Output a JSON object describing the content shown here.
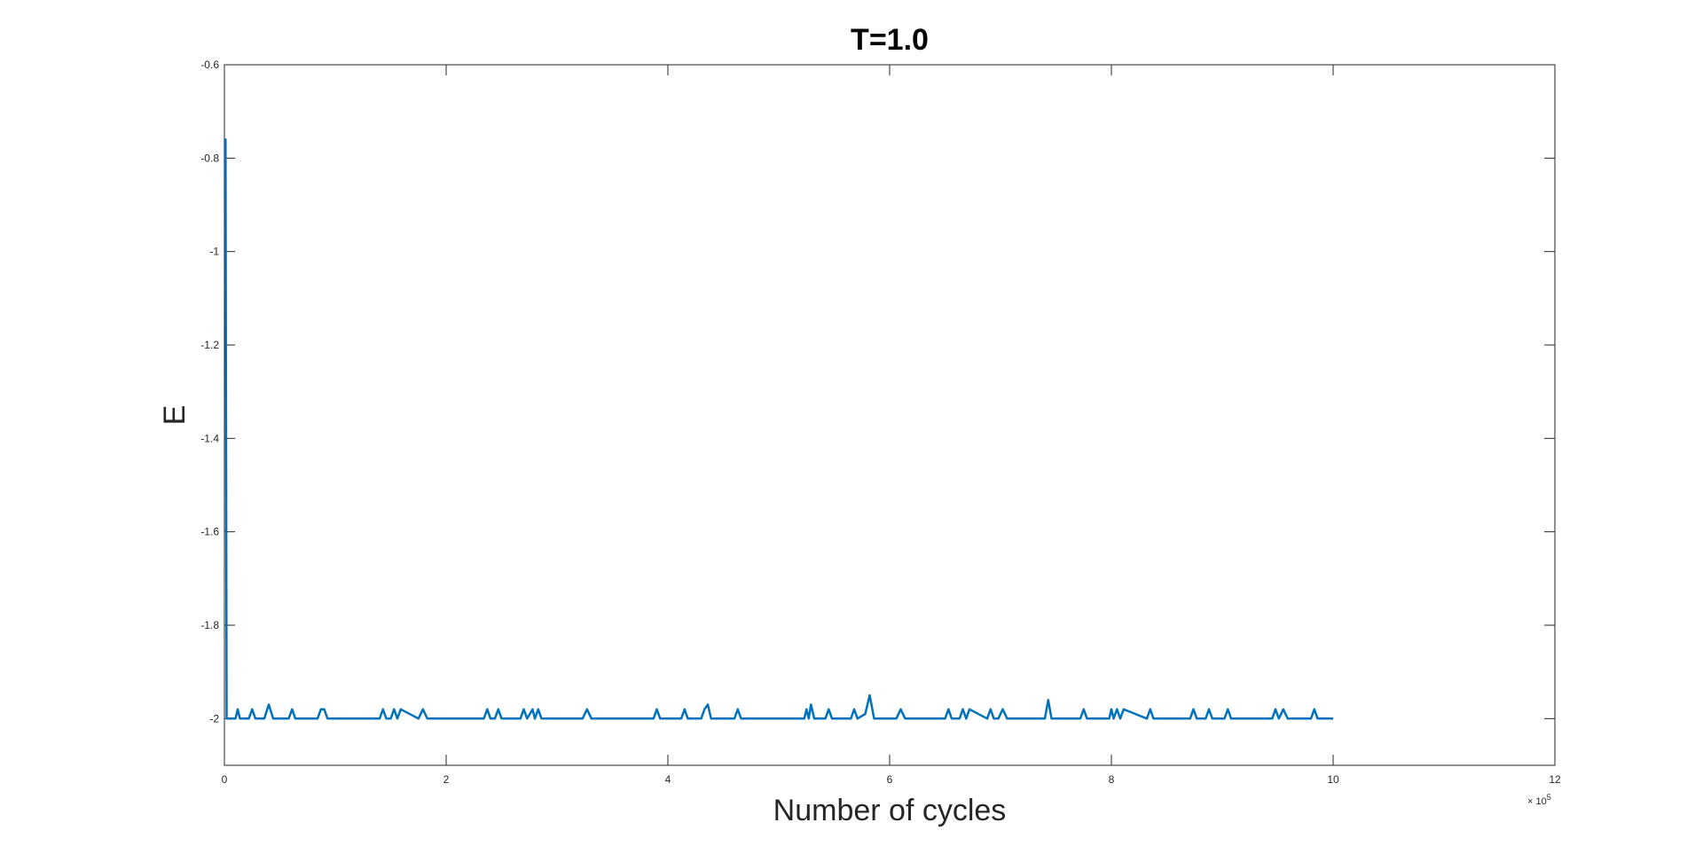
{
  "chart_data": {
    "type": "line",
    "title": "T=1.0",
    "xlabel": "Number of cycles",
    "ylabel": "E",
    "x_exponent_label": "× 10",
    "x_exponent_power": "5",
    "xlim": [
      0,
      12
    ],
    "ylim": [
      -2.1,
      -0.6
    ],
    "xticks": [
      0,
      2,
      4,
      6,
      8,
      10,
      12
    ],
    "xtick_labels": [
      "0",
      "2",
      "4",
      "6",
      "8",
      "10",
      "12"
    ],
    "yticks": [
      -2,
      -1.8,
      -1.6,
      -1.4,
      -1.2,
      -1,
      -0.8,
      -0.6
    ],
    "ytick_labels": [
      "-2",
      "-1.8",
      "-1.6",
      "-1.4",
      "-1.2",
      "-1",
      "-0.8",
      "-0.6"
    ],
    "grid": true,
    "line_color": "#0072BD",
    "series": [
      {
        "x": [
          0,
          0.01,
          0.02,
          0.04,
          0.06,
          0.1,
          0.12,
          0.14,
          0.22,
          0.25,
          0.28,
          0.36,
          0.4,
          0.44,
          0.58,
          0.61,
          0.64,
          0.84,
          0.87,
          0.9,
          0.93,
          1.4,
          1.43,
          1.46,
          1.5,
          1.53,
          1.56,
          1.59,
          1.75,
          1.79,
          1.83,
          2.34,
          2.37,
          2.4,
          2.44,
          2.47,
          2.5,
          2.67,
          2.7,
          2.73,
          2.78,
          2.8,
          2.83,
          2.86,
          2.89,
          3.23,
          3.27,
          3.31,
          3.87,
          3.9,
          3.93,
          4.12,
          4.15,
          4.18,
          4.3,
          4.33,
          4.36,
          4.39,
          4.6,
          4.63,
          4.66,
          5.23,
          5.25,
          5.27,
          5.29,
          5.32,
          5.42,
          5.45,
          5.48,
          5.65,
          5.68,
          5.71,
          5.78,
          5.82,
          5.86,
          6.06,
          6.1,
          6.14,
          6.5,
          6.53,
          6.56,
          6.63,
          6.66,
          6.69,
          6.72,
          6.88,
          6.91,
          6.94,
          6.98,
          7.02,
          7.06,
          7.4,
          7.43,
          7.46,
          7.72,
          7.75,
          7.78,
          7.98,
          8.0,
          8.02,
          8.05,
          8.08,
          8.11,
          8.32,
          8.35,
          8.38,
          8.71,
          8.74,
          8.77,
          8.85,
          8.88,
          8.91,
          9.02,
          9.05,
          9.08,
          9.45,
          9.48,
          9.51,
          9.55,
          9.59,
          9.8,
          9.83,
          9.86,
          10.0
        ],
        "y": [
          -0.76,
          -0.76,
          -2.0,
          -2.0,
          -2.0,
          -2.0,
          -1.98,
          -2.0,
          -2.0,
          -1.98,
          -2.0,
          -2.0,
          -1.97,
          -2.0,
          -2.0,
          -1.98,
          -2.0,
          -2.0,
          -1.98,
          -1.98,
          -2.0,
          -2.0,
          -1.98,
          -2.0,
          -2.0,
          -1.98,
          -2.0,
          -1.98,
          -2.0,
          -1.98,
          -2.0,
          -2.0,
          -1.98,
          -2.0,
          -2.0,
          -1.98,
          -2.0,
          -2.0,
          -1.98,
          -2.0,
          -1.98,
          -2.0,
          -1.98,
          -2.0,
          -2.0,
          -2.0,
          -1.98,
          -2.0,
          -2.0,
          -1.98,
          -2.0,
          -2.0,
          -1.98,
          -2.0,
          -2.0,
          -1.98,
          -1.97,
          -2.0,
          -2.0,
          -1.98,
          -2.0,
          -2.0,
          -1.98,
          -2.0,
          -1.97,
          -2.0,
          -2.0,
          -1.98,
          -2.0,
          -2.0,
          -1.98,
          -2.0,
          -1.99,
          -1.95,
          -2.0,
          -2.0,
          -1.98,
          -2.0,
          -2.0,
          -1.98,
          -2.0,
          -2.0,
          -1.98,
          -2.0,
          -1.98,
          -2.0,
          -1.98,
          -2.0,
          -2.0,
          -1.98,
          -2.0,
          -2.0,
          -1.96,
          -2.0,
          -2.0,
          -1.98,
          -2.0,
          -2.0,
          -1.98,
          -2.0,
          -1.98,
          -2.0,
          -1.98,
          -2.0,
          -1.98,
          -2.0,
          -2.0,
          -1.98,
          -2.0,
          -2.0,
          -1.98,
          -2.0,
          -2.0,
          -1.98,
          -2.0,
          -2.0,
          -1.98,
          -2.0,
          -1.98,
          -2.0,
          -2.0,
          -1.98,
          -2.0,
          -2.0
        ]
      }
    ]
  }
}
